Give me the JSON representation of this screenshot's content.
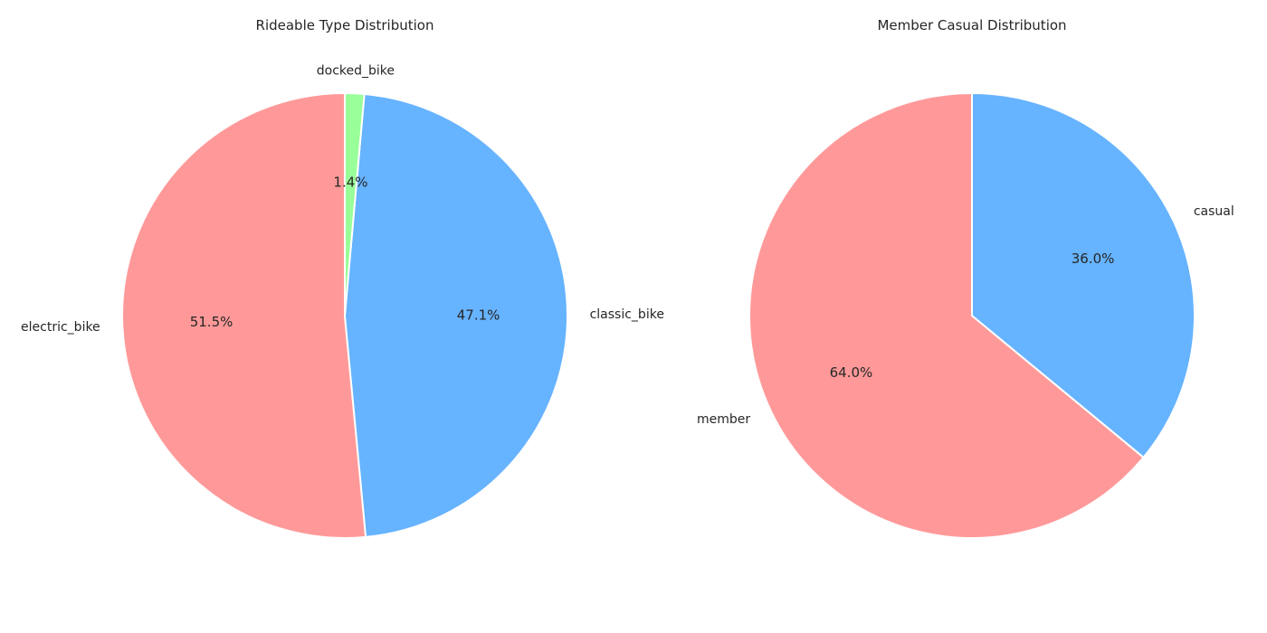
{
  "chart_data": [
    {
      "type": "pie",
      "title": "Rideable Type Distribution",
      "start_angle_deg": 90,
      "direction": "counterclockwise",
      "slices": [
        {
          "label": "electric_bike",
          "value": 51.5,
          "pct_label": "51.5%",
          "color": "#ff9999"
        },
        {
          "label": "classic_bike",
          "value": 47.1,
          "pct_label": "47.1%",
          "color": "#66b3ff"
        },
        {
          "label": "docked_bike",
          "value": 1.4,
          "pct_label": "1.4%",
          "color": "#99ff99"
        }
      ]
    },
    {
      "type": "pie",
      "title": "Member Casual Distribution",
      "start_angle_deg": 90,
      "direction": "counterclockwise",
      "slices": [
        {
          "label": "member",
          "value": 64.0,
          "pct_label": "64.0%",
          "color": "#ff9999"
        },
        {
          "label": "casual",
          "value": 36.0,
          "pct_label": "36.0%",
          "color": "#66b3ff"
        }
      ]
    }
  ]
}
